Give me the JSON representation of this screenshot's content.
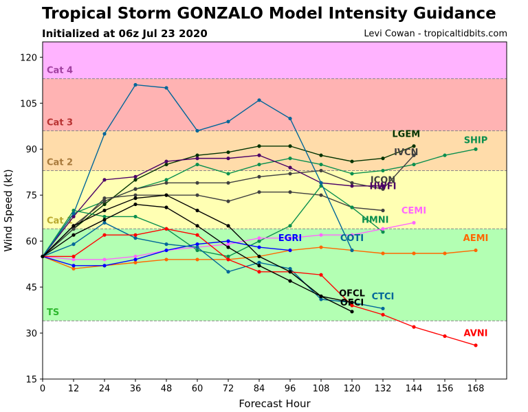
{
  "header": {
    "title": "Tropical Storm GONZALO Model Intensity Guidance",
    "subtitle": "Initialized at 06z Jul 23 2020",
    "credit": "Levi Cowan - tropicaltidbits.com"
  },
  "chart_data": {
    "type": "line",
    "xlabel": "Forecast Hour",
    "ylabel": "Wind Speed (kt)",
    "xlim": [
      0,
      180
    ],
    "ylim": [
      15,
      125
    ],
    "xticks": [
      0,
      12,
      24,
      36,
      48,
      60,
      72,
      84,
      96,
      108,
      120,
      132,
      144,
      156,
      168
    ],
    "yticks": [
      15,
      30,
      45,
      60,
      75,
      90,
      105,
      120
    ],
    "grid": false,
    "categories_bands": [
      {
        "label": "TS",
        "from": 34,
        "to": 64,
        "color": "#b3ffb3",
        "text_color": "#2eb82e"
      },
      {
        "label": "Cat 1",
        "from": 64,
        "to": 83,
        "color": "#ffffb3",
        "text_color": "#b8a82e"
      },
      {
        "label": "Cat 2",
        "from": 83,
        "to": 96,
        "color": "#ffdcaa",
        "text_color": "#a87a3c"
      },
      {
        "label": "Cat 3",
        "from": 96,
        "to": 113,
        "color": "#ffb3b3",
        "text_color": "#b83232"
      },
      {
        "label": "Cat 4",
        "from": 113,
        "to": 125,
        "color": "#ffb3ff",
        "text_color": "#a040a0"
      }
    ],
    "series": [
      {
        "name": "SHIP",
        "color": "#0a8f4e",
        "x": [
          0,
          12,
          24,
          36,
          48,
          60,
          72,
          84,
          96,
          108,
          120,
          132,
          144,
          156,
          168
        ],
        "y": [
          55,
          69,
          73,
          77,
          80,
          85,
          82,
          85,
          87,
          85,
          82,
          83,
          85,
          88,
          90
        ],
        "label_at": [
          168,
          92
        ]
      },
      {
        "name": "LGEM",
        "color": "#003300",
        "x": [
          0,
          12,
          24,
          36,
          48,
          60,
          72,
          84,
          96,
          108,
          120,
          132,
          144
        ],
        "y": [
          55,
          64,
          72,
          80,
          85,
          88,
          89,
          91,
          91,
          88,
          86,
          87,
          91
        ],
        "label_at": [
          141,
          94
        ]
      },
      {
        "name": "IVCN",
        "color": "#404040",
        "x": [
          0,
          12,
          24,
          36,
          48,
          60,
          72,
          84,
          96,
          108,
          120,
          132,
          144
        ],
        "y": [
          55,
          65,
          73,
          77,
          79,
          79,
          79,
          81,
          82,
          83,
          79,
          77,
          88
        ],
        "label_at": [
          141,
          88
        ]
      },
      {
        "name": "ICON",
        "color": "#404040",
        "x": [
          0,
          12,
          24,
          36,
          48,
          60,
          72,
          84,
          96,
          108,
          120,
          132
        ],
        "y": [
          55,
          64,
          74,
          75,
          75,
          75,
          73,
          76,
          76,
          75,
          71,
          70
        ],
        "label_at": [
          132,
          79
        ]
      },
      {
        "name": "HWFI",
        "color": "#4b0066",
        "x": [
          0,
          12,
          24,
          36,
          48,
          60,
          72,
          84,
          96,
          108,
          120,
          132
        ],
        "y": [
          55,
          68,
          80,
          81,
          86,
          87,
          87,
          88,
          84,
          79,
          78,
          78
        ],
        "label_at": [
          132,
          77
        ]
      },
      {
        "name": "HMNI",
        "color": "#0a8f4e",
        "x": [
          0,
          12,
          24,
          36,
          48,
          60,
          72,
          84,
          96,
          108,
          120,
          132
        ],
        "y": [
          55,
          70,
          68,
          68,
          64,
          57,
          55,
          60,
          65,
          78,
          71,
          63
        ],
        "label_at": [
          129,
          66
        ]
      },
      {
        "name": "CEMI",
        "color": "#ff66ff",
        "x": [
          0,
          12,
          24,
          36,
          48,
          60,
          72,
          84,
          96,
          108,
          120,
          132,
          144
        ],
        "y": [
          55,
          54,
          54,
          55,
          57,
          58,
          59,
          61,
          61,
          62,
          62,
          64,
          66
        ],
        "label_at": [
          144,
          69
        ]
      },
      {
        "name": "AEMI",
        "color": "#ff6600",
        "x": [
          0,
          12,
          24,
          36,
          48,
          60,
          72,
          84,
          96,
          108,
          120,
          132,
          144,
          156,
          168
        ],
        "y": [
          55,
          51,
          52,
          53,
          54,
          54,
          54,
          55,
          57,
          58,
          57,
          56,
          56,
          56,
          57
        ],
        "label_at": [
          168,
          60
        ]
      },
      {
        "name": "EGRI",
        "color": "#0000ff",
        "x": [
          0,
          12,
          24,
          36,
          48,
          60,
          72,
          84,
          96
        ],
        "y": [
          55,
          52,
          52,
          54,
          57,
          59,
          60,
          58,
          57
        ],
        "label_at": [
          96,
          60
        ]
      },
      {
        "name": "COTI",
        "color": "#006699",
        "x": [
          0,
          12,
          24,
          36,
          48,
          60,
          72,
          84,
          96,
          108,
          120
        ],
        "y": [
          55,
          69,
          95,
          111,
          110,
          96,
          99,
          106,
          100,
          79,
          57
        ],
        "label_at": [
          120,
          60
        ]
      },
      {
        "name": "CTCI",
        "color": "#006699",
        "x": [
          0,
          12,
          24,
          36,
          48,
          60,
          72,
          84,
          96,
          108,
          120,
          132
        ],
        "y": [
          55,
          59,
          66,
          61,
          59,
          58,
          50,
          53,
          51,
          41,
          40,
          38
        ],
        "label_at": [
          132,
          41
        ]
      },
      {
        "name": "AVNI",
        "color": "#ff0000",
        "x": [
          0,
          12,
          24,
          36,
          48,
          60,
          72,
          84,
          96,
          108,
          120,
          132,
          144,
          156,
          168
        ],
        "y": [
          55,
          55,
          62,
          62,
          64,
          62,
          54,
          50,
          50,
          49,
          39,
          36,
          32,
          29,
          26
        ],
        "label_at": [
          168,
          29
        ]
      },
      {
        "name": "OFCL",
        "color": "#000000",
        "x": [
          0,
          12,
          24,
          36,
          48,
          60,
          72,
          84,
          96,
          108,
          120
        ],
        "y": [
          55,
          65,
          70,
          74,
          75,
          70,
          65,
          55,
          50,
          42,
          37
        ],
        "label_at": [
          120,
          42
        ]
      },
      {
        "name": "OFCI",
        "color": "#000000",
        "x": [
          0,
          12,
          24,
          36,
          48,
          60,
          72,
          84,
          96,
          108,
          120
        ],
        "y": [
          55,
          62,
          67,
          72,
          71,
          65,
          58,
          52,
          47,
          42,
          40
        ],
        "label_at": [
          120,
          39
        ]
      }
    ]
  }
}
